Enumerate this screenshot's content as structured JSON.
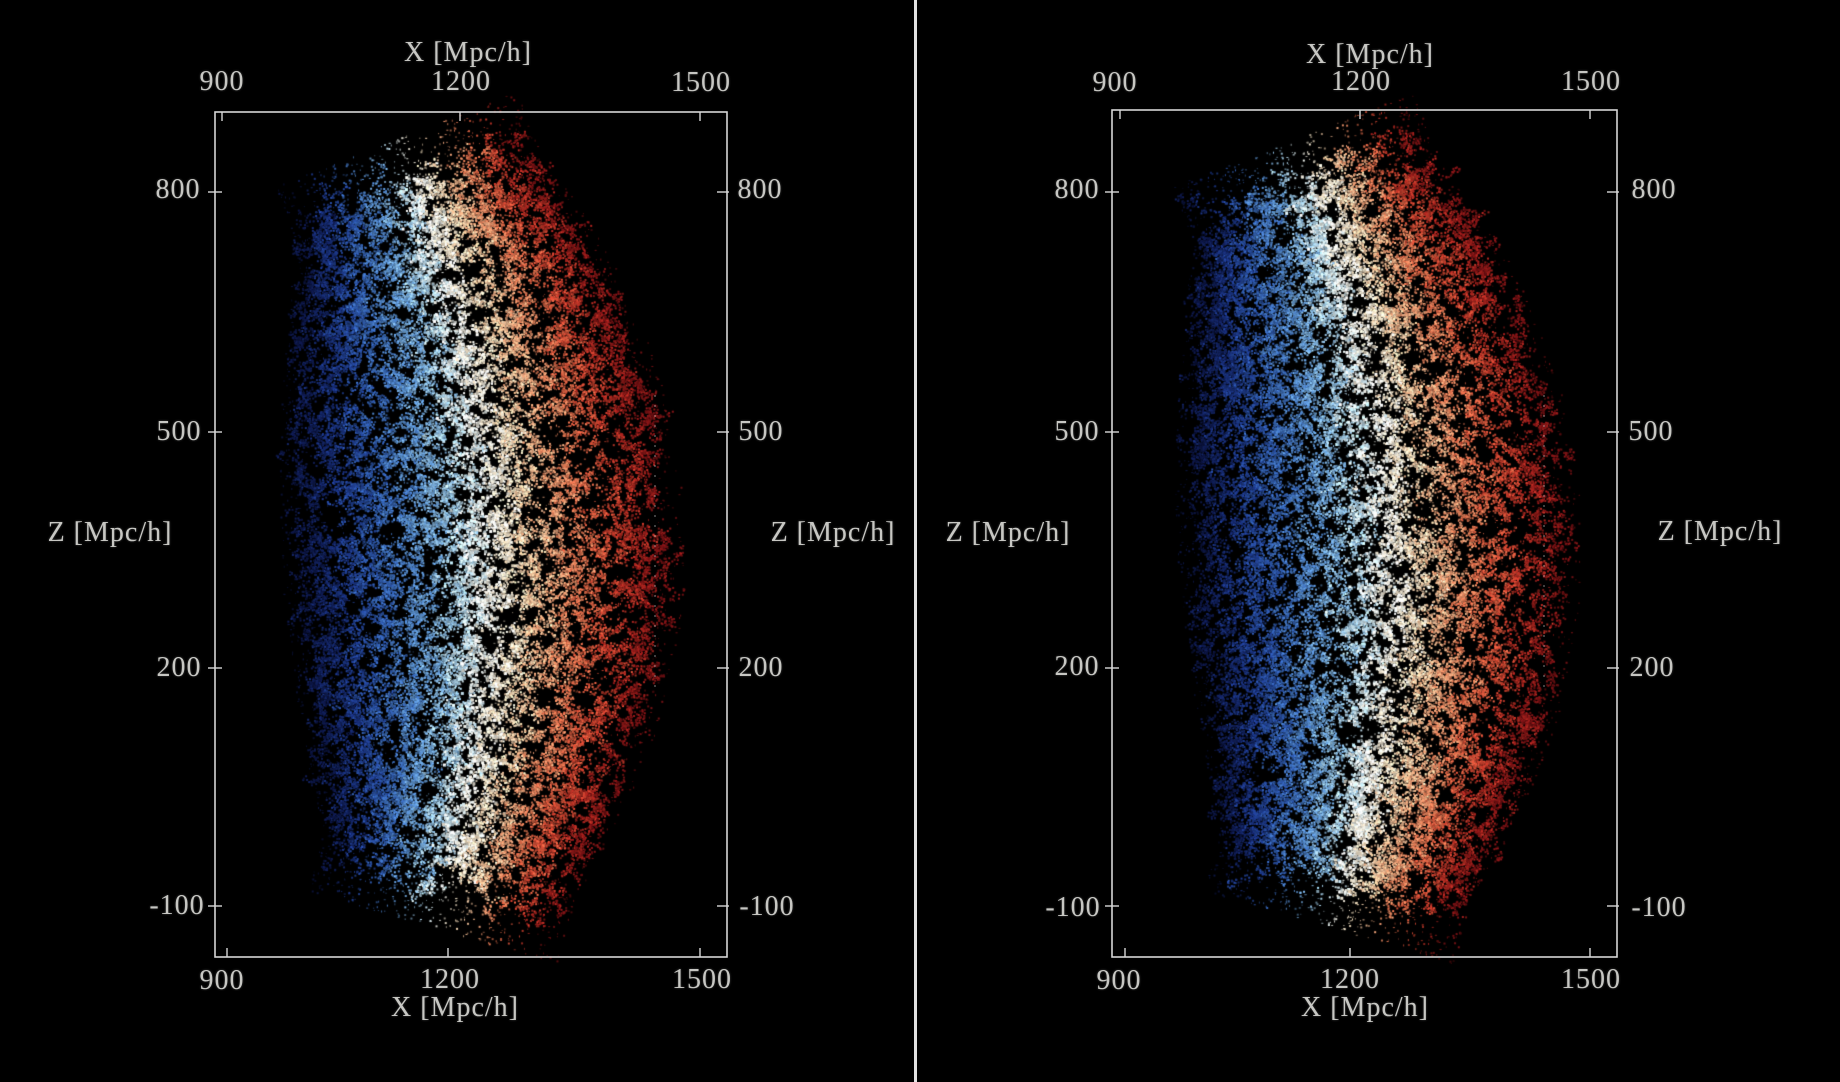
{
  "figure": {
    "kind": "stereo pair of 3D point-cloud projections",
    "background": "#000000",
    "divider_color": "#e2e2e2",
    "text_color": "#c7c7c3",
    "frame_color": "#d6d6d6",
    "inner_frame_color": "#bdbdbd"
  },
  "panels": [
    {
      "id": "left",
      "x_axis_title_top": "X [Mpc/h]",
      "x_axis_title_bottom": "X [Mpc/h]",
      "z_axis_title_left": "Z [Mpc/h]",
      "z_axis_title_right": "Z [Mpc/h]",
      "x_ticks_top": [
        "900",
        "1200",
        "1500"
      ],
      "x_ticks_bottom": [
        "900",
        "1200",
        "1500"
      ],
      "z_ticks_left": [
        "800",
        "500",
        "200",
        "-100"
      ],
      "z_ticks_right": [
        "800",
        "500",
        "200",
        "-100"
      ]
    },
    {
      "id": "right",
      "x_axis_title_top": "X [Mpc/h]",
      "x_axis_title_bottom": "X [Mpc/h]",
      "z_axis_title_left": "Z [Mpc/h]",
      "z_axis_title_right": "Z [Mpc/h]",
      "x_ticks_top": [
        "900",
        "1200",
        "1500"
      ],
      "x_ticks_bottom": [
        "900",
        "1200",
        "1500"
      ],
      "z_ticks_left": [
        "800",
        "500",
        "200",
        "-100"
      ],
      "z_ticks_right": [
        "800",
        "500",
        "200",
        "-100"
      ]
    }
  ],
  "chart_data": {
    "type": "scatter",
    "subtype": "3d-point-cloud-stereo-pair",
    "description": "Two near-identical 3D box projections (stereo pair) of a wedge-shaped galaxy/particle survey volume; the dense clumpy point cloud forms a curved band colored blue-to-white-to-red across its width (by line-of-sight distance).",
    "x_axis": {
      "label": "X [Mpc/h]",
      "ticks": [
        900,
        1200,
        1500
      ],
      "range": [
        900,
        1500
      ]
    },
    "z_axis": {
      "label": "Z [Mpc/h]",
      "ticks": [
        800,
        500,
        200,
        -100
      ],
      "range": [
        -100,
        800
      ]
    },
    "grid": false,
    "legend": false,
    "background": "#000000",
    "colormap": {
      "name": "blue-white-red",
      "stops": [
        [
          -1.0,
          13,
          22,
          68
        ],
        [
          -0.78,
          28,
          54,
          133
        ],
        [
          -0.55,
          52,
          98,
          176
        ],
        [
          -0.33,
          96,
          150,
          205
        ],
        [
          -0.15,
          158,
          200,
          226
        ],
        [
          -0.03,
          222,
          236,
          238
        ],
        [
          0.05,
          245,
          240,
          228
        ],
        [
          0.16,
          247,
          228,
          196
        ],
        [
          0.33,
          240,
          178,
          136
        ],
        [
          0.52,
          224,
          118,
          81
        ],
        [
          0.7,
          199,
          70,
          49
        ],
        [
          0.86,
          163,
          36,
          30
        ],
        [
          1.0,
          116,
          17,
          20
        ]
      ]
    },
    "n_points_approx": 50000,
    "panels": [
      {
        "box_outer": [
          215,
          112,
          727,
          957
        ],
        "box_inner": [
          288,
          232,
          656,
          839
        ],
        "band": {
          "spine": [
            [
              418,
              198
            ],
            [
              530,
              528
            ],
            [
              448,
              866
            ]
          ],
          "halfwidth_end": 115,
          "halfwidth_mid": 179
        },
        "seed": 1337
      },
      {
        "box_outer": [
          1112,
          110,
          1617,
          957
        ],
        "box_inner": [
          1183,
          230,
          1545,
          838
        ],
        "band": {
          "spine": [
            [
              1315,
              198
            ],
            [
              1427,
              528
            ],
            [
              1345,
              866
            ]
          ],
          "halfwidth_end": 115,
          "halfwidth_mid": 179
        },
        "seed": 90210
      }
    ]
  }
}
